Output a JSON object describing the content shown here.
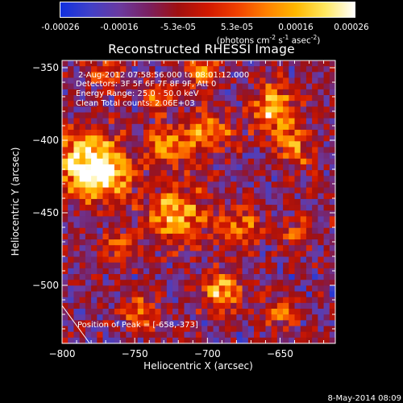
{
  "colorbar": {
    "ticks": [
      "-0.00026",
      "-0.00016",
      "-5.3e-05",
      "5.3e-05",
      "0.00016",
      "0.00026"
    ],
    "unit_prefix": "(photons cm",
    "unit_exp1": "-2",
    "unit_mid1": " s",
    "unit_exp2": "-1",
    "unit_mid2": " asec",
    "unit_exp3": "-2",
    "unit_suffix": ")",
    "colors": [
      "#1030e0",
      "#4040c8",
      "#6a3aa0",
      "#7a2060",
      "#a01010",
      "#d01800",
      "#f04000",
      "#ff8000",
      "#ffb800",
      "#ffe860",
      "#ffffff"
    ]
  },
  "chart_data": {
    "type": "heatmap",
    "title": "Reconstructed RHESSI Image",
    "xlabel": "Heliocentric X (arcsec)",
    "ylabel": "Heliocentric Y (arcsec)",
    "xlim": [
      -800,
      -612
    ],
    "ylim": [
      -540,
      -345
    ],
    "x_ticks": [
      -800,
      -750,
      -700,
      -650
    ],
    "y_ticks": [
      -350,
      -400,
      -450,
      -500
    ],
    "x_tick_labels": [
      "−800",
      "−750",
      "−700",
      "−650"
    ],
    "y_tick_labels": [
      "−350",
      "−400",
      "−450",
      "−500"
    ],
    "value_range": [
      -0.00026,
      0.00026
    ],
    "peak": [
      -658,
      -373
    ],
    "annotations": [
      "2-Aug-2012 07:58:56.000 to 08:01:12.000",
      "Detectors: 3F 5F 6F 7F 8F 9F, Att 0",
      "Energy Range: 25.0 - 50.0 keV",
      "Clean     Total counts: 2.06E+03"
    ],
    "peak_label": "Position of Peak = [-658,-373]"
  },
  "footer": "8-May-2014 08:09"
}
